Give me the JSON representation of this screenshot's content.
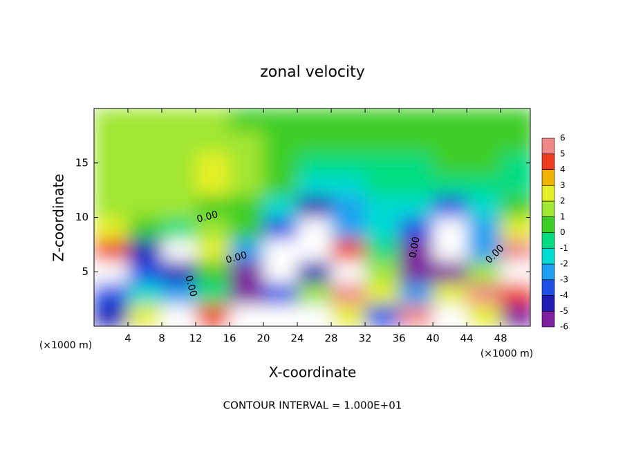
{
  "chart_data": {
    "type": "contour",
    "title": "zonal velocity",
    "x_label": "X-coordinate",
    "y_label": "Z-coordinate",
    "x_unit_label": "(×1000 m)",
    "footer": "CONTOUR INTERVAL = 1.000E+01",
    "contour_label": "0.00",
    "xlim": [
      0,
      51.5
    ],
    "ylim": [
      0,
      20
    ],
    "xticks": [
      4,
      8,
      12,
      16,
      20,
      24,
      28,
      32,
      36,
      40,
      44,
      48
    ],
    "yticks": [
      5,
      10,
      15
    ],
    "x": [
      2,
      6,
      10,
      14,
      18,
      22,
      26,
      30,
      34,
      38,
      42,
      46,
      50
    ],
    "y": [
      1,
      3,
      5,
      7,
      9,
      11,
      13,
      15,
      17,
      19
    ],
    "z": [
      [
        -4,
        3,
        7,
        5,
        7,
        8,
        8,
        3,
        -3,
        6,
        8,
        3,
        -5
      ],
      [
        -3,
        -1,
        -2,
        0,
        -6,
        -3,
        2,
        6,
        3,
        -2,
        3,
        6,
        5
      ],
      [
        7,
        -3,
        -4,
        0.5,
        -6,
        -7,
        -4,
        7,
        2,
        -5,
        -5,
        2,
        7
      ],
      [
        5,
        -4,
        -7,
        3,
        -2,
        -7,
        -7,
        5,
        -0.5,
        -5,
        -7,
        -2,
        6
      ],
      [
        2.5,
        1,
        0,
        1.5,
        0.5,
        -3,
        -7,
        -2,
        -1,
        -3,
        -7,
        -2,
        3
      ],
      [
        2,
        1.5,
        1.2,
        1,
        0.5,
        -1,
        -4,
        -2,
        -1,
        -1,
        -3,
        -1,
        0.5
      ],
      [
        1.5,
        1.5,
        2,
        3,
        1.5,
        0.5,
        -1,
        -1,
        -0.5,
        -0.5,
        0,
        0,
        -0.5
      ],
      [
        1.5,
        1.6,
        1.8,
        2.5,
        1.5,
        1,
        0,
        -0.5,
        -0.5,
        0,
        0.5,
        0.3,
        0
      ],
      [
        1.5,
        1.5,
        1.6,
        1.4,
        1.2,
        0.8,
        0.5,
        0.3,
        0.3,
        0.5,
        0.8,
        0.6,
        0.3
      ],
      [
        1.5,
        1.5,
        1.5,
        1.2,
        1,
        0.8,
        0.6,
        0.5,
        0.5,
        0.5,
        0.6,
        0.8,
        0.5
      ]
    ],
    "levels": [
      -6,
      -5,
      -4,
      -3,
      -2,
      -1,
      0,
      1,
      2,
      3,
      4,
      5,
      6
    ],
    "colors": [
      "#7d1f9e",
      "#1e1eb4",
      "#1e50e6",
      "#1ea0f0",
      "#00dcd2",
      "#00dc82",
      "#3ccd28",
      "#a0e632",
      "#e6f028",
      "#f0b400",
      "#f03c1e",
      "#f08888"
    ]
  }
}
